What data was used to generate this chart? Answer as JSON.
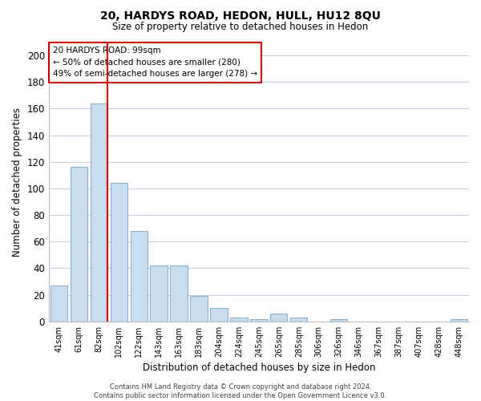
{
  "title": "20, HARDYS ROAD, HEDON, HULL, HU12 8QU",
  "subtitle": "Size of property relative to detached houses in Hedon",
  "xlabel": "Distribution of detached houses by size in Hedon",
  "ylabel": "Number of detached properties",
  "bar_labels": [
    "41sqm",
    "61sqm",
    "82sqm",
    "102sqm",
    "122sqm",
    "143sqm",
    "163sqm",
    "183sqm",
    "204sqm",
    "224sqm",
    "245sqm",
    "265sqm",
    "285sqm",
    "306sqm",
    "326sqm",
    "346sqm",
    "367sqm",
    "387sqm",
    "407sqm",
    "428sqm",
    "448sqm"
  ],
  "bar_values": [
    27,
    116,
    164,
    104,
    68,
    42,
    42,
    19,
    10,
    3,
    2,
    6,
    3,
    0,
    2,
    0,
    0,
    0,
    0,
    0,
    2
  ],
  "bar_color": "#c8ddf0",
  "bar_edge_color": "#8ab0d0",
  "vline_color": "#cc0000",
  "ylim": [
    0,
    210
  ],
  "yticks": [
    0,
    20,
    40,
    60,
    80,
    100,
    120,
    140,
    160,
    180,
    200
  ],
  "annotation_title": "20 HARDYS ROAD: 99sqm",
  "annotation_line1": "← 50% of detached houses are smaller (280)",
  "annotation_line2": "49% of semi-detached houses are larger (278) →",
  "annotation_box_color": "#ffffff",
  "annotation_box_edge": "#cc0000",
  "footer_line1": "Contains HM Land Registry data © Crown copyright and database right 2024.",
  "footer_line2": "Contains public sector information licensed under the Open Government Licence v3.0.",
  "background_color": "#ffffff",
  "grid_color": "#c0cfe0"
}
